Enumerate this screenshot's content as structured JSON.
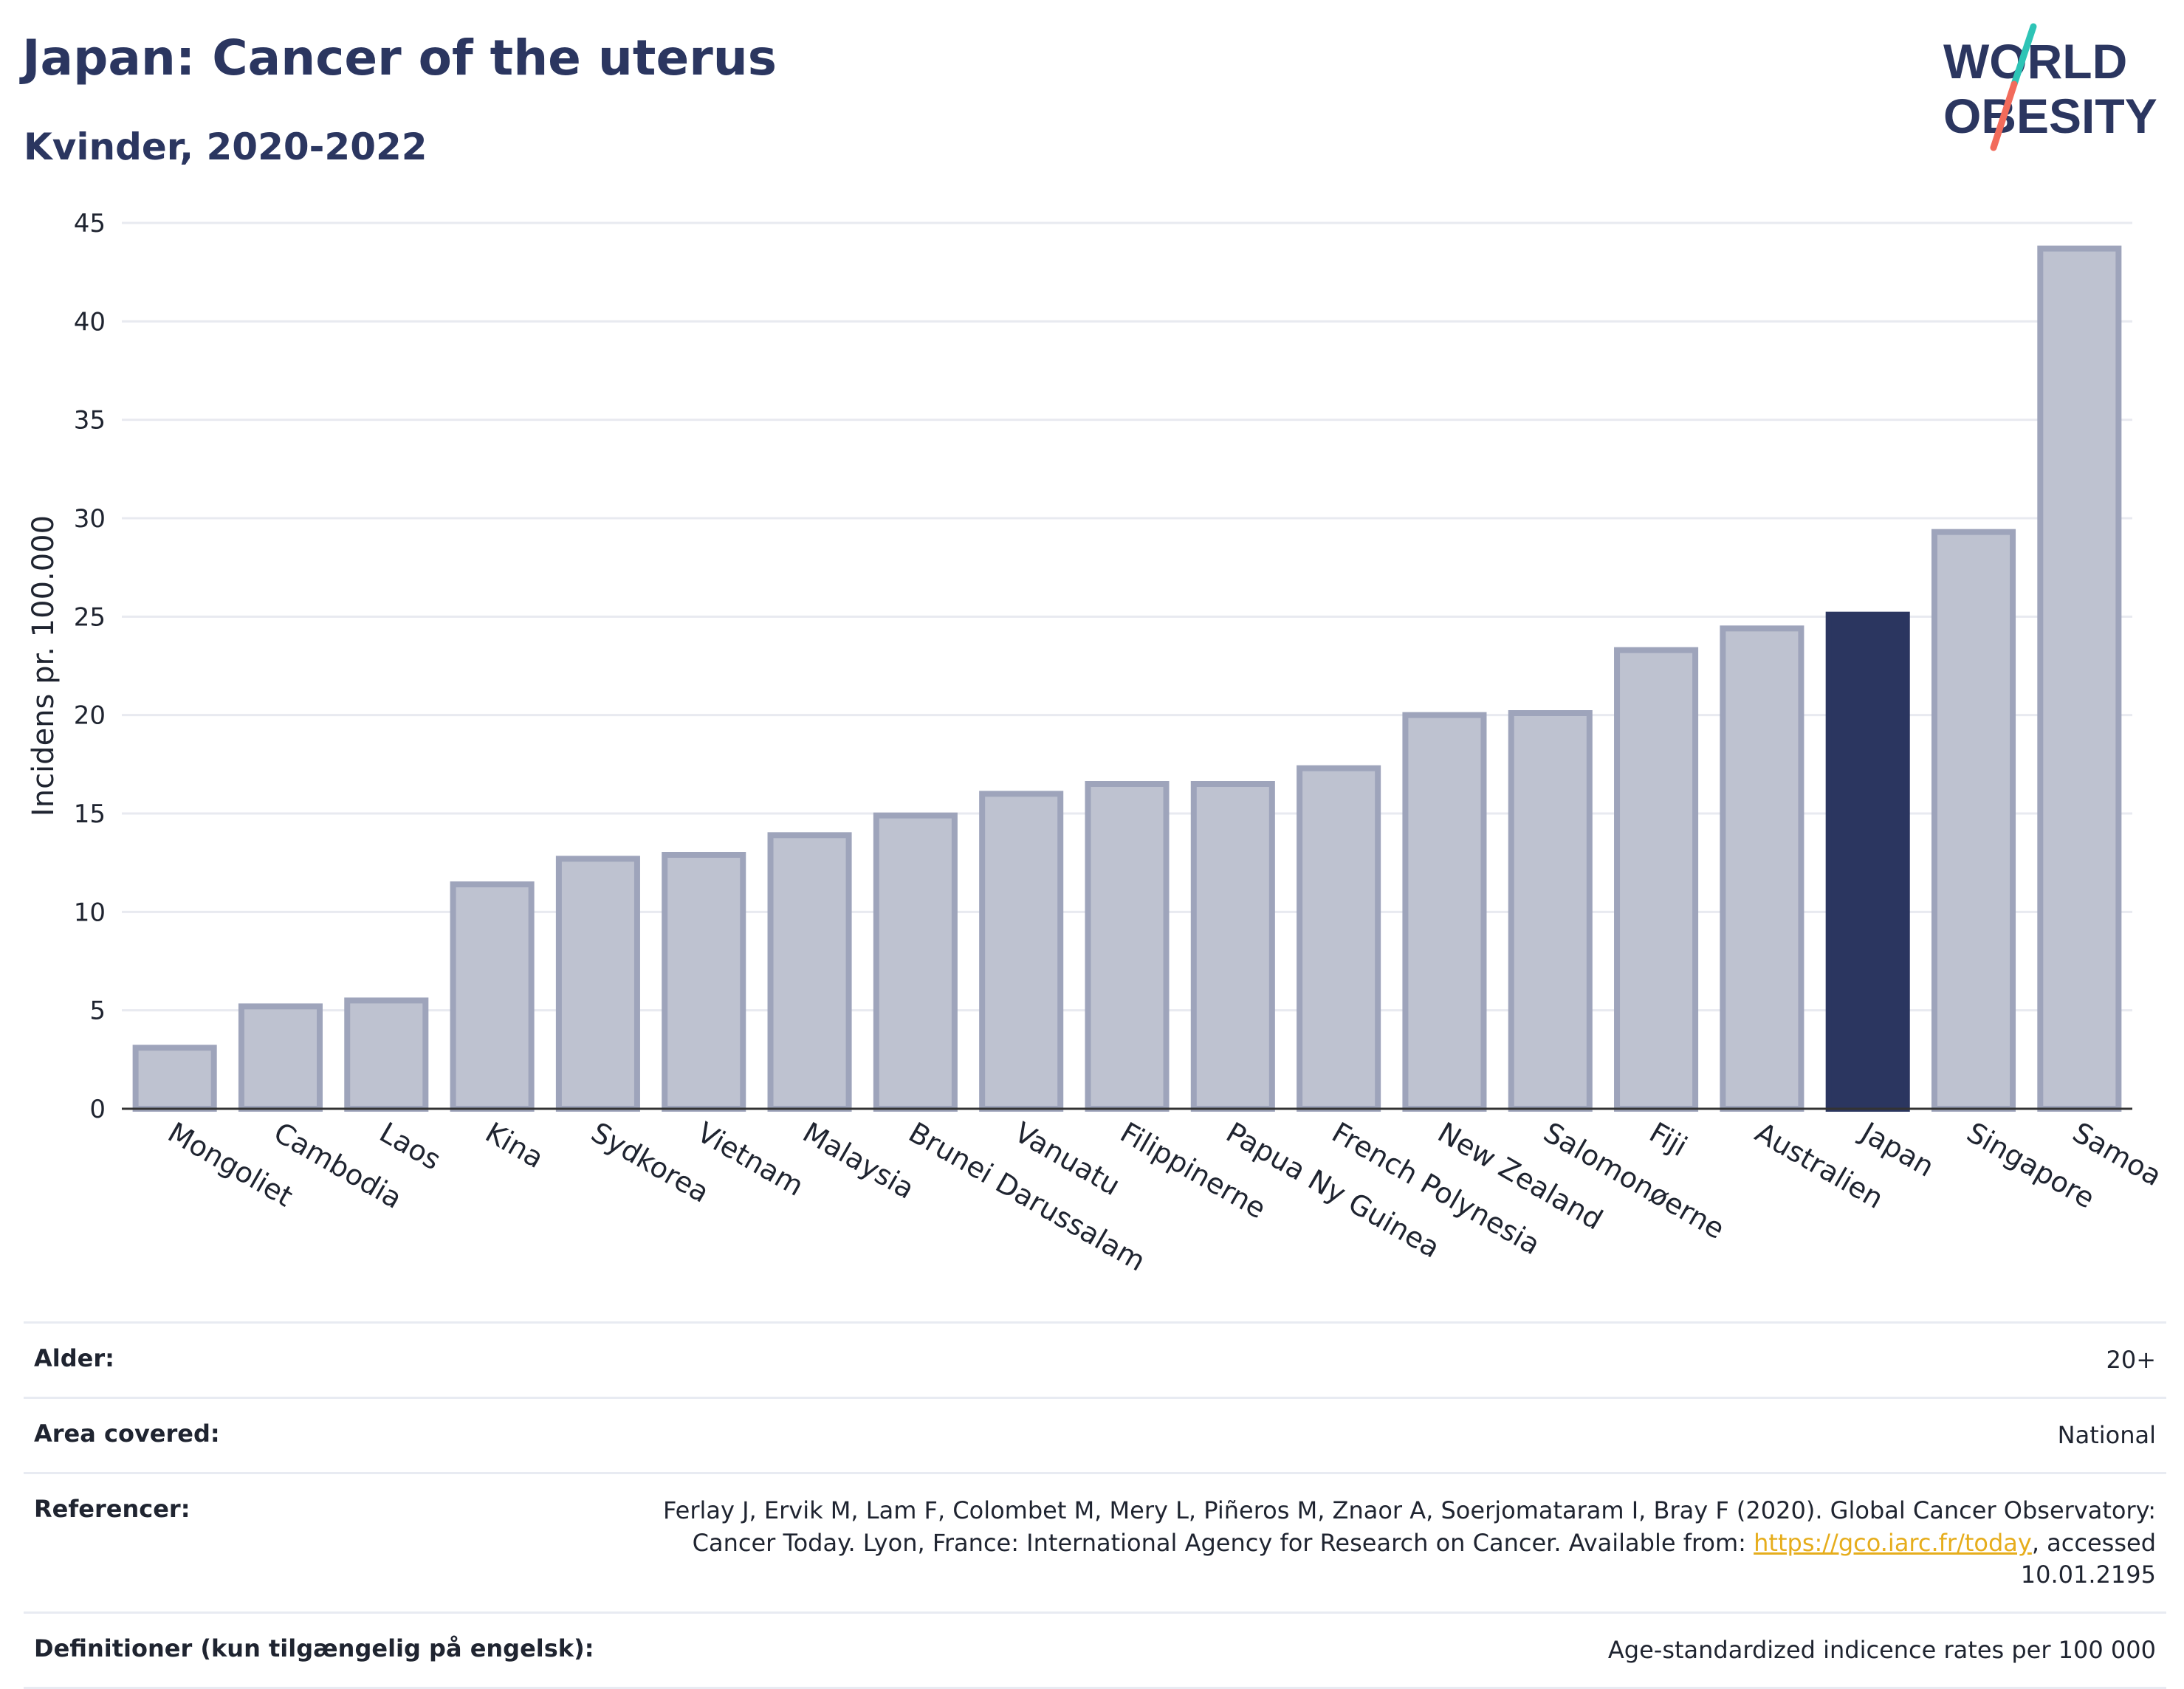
{
  "header": {
    "title": "Japan: Cancer of the uterus",
    "subtitle": "Kvinder, 2020-2022"
  },
  "logo": {
    "line1": "WORLD",
    "line2": "OBESITY",
    "slash_colors": [
      "#2ec4b6",
      "#f26b5b"
    ]
  },
  "chart_data": {
    "type": "bar",
    "ylabel": "Incidens pr. 100.000",
    "ylim": [
      0,
      45
    ],
    "yticks": [
      "0",
      "5",
      "10",
      "15",
      "20",
      "25",
      "30",
      "35",
      "40",
      "45"
    ],
    "categories": [
      "Mongoliet",
      "Cambodia",
      "Laos",
      "Kina",
      "Sydkorea",
      "Vietnam",
      "Malaysia",
      "Brunei Darussalam",
      "Vanuatu",
      "Filippinerne",
      "Papua Ny Guinea",
      "French Polynesia",
      "New Zealand",
      "Salomonøerne",
      "Fiji",
      "Australien",
      "Japan",
      "Singapore",
      "Samoa"
    ],
    "values": [
      3.1,
      5.2,
      5.5,
      11.4,
      12.7,
      12.9,
      13.9,
      14.9,
      16.0,
      16.5,
      16.5,
      17.3,
      20.0,
      20.1,
      23.3,
      24.4,
      25.1,
      29.3,
      43.7
    ],
    "highlight": "Japan",
    "colors": {
      "bar": "#bec2d0",
      "bar_border": "#9ea4bb",
      "highlight": "#2b3660",
      "grid": "#e8eaf0",
      "axis": "#333333"
    },
    "grid": true
  },
  "meta": [
    {
      "label": "Alder:",
      "value": "20+"
    },
    {
      "label": "Area covered:",
      "value": "National"
    },
    {
      "label": "Referencer:",
      "value_pre": "Ferlay J, Ervik M, Lam F, Colombet M, Mery L, Piñeros M, Znaor A, Soerjomataram I, Bray F (2020). Global Cancer Observatory: Cancer Today. Lyon, France: International Agency for Research on Cancer. Available from: ",
      "link": "https://gco.iarc.fr/today",
      "value_post": ", accessed 10.01.2195"
    },
    {
      "label": "Definitioner (kun tilgængelig på engelsk):",
      "value": "Age-standardized indicence rates per 100 000"
    }
  ]
}
